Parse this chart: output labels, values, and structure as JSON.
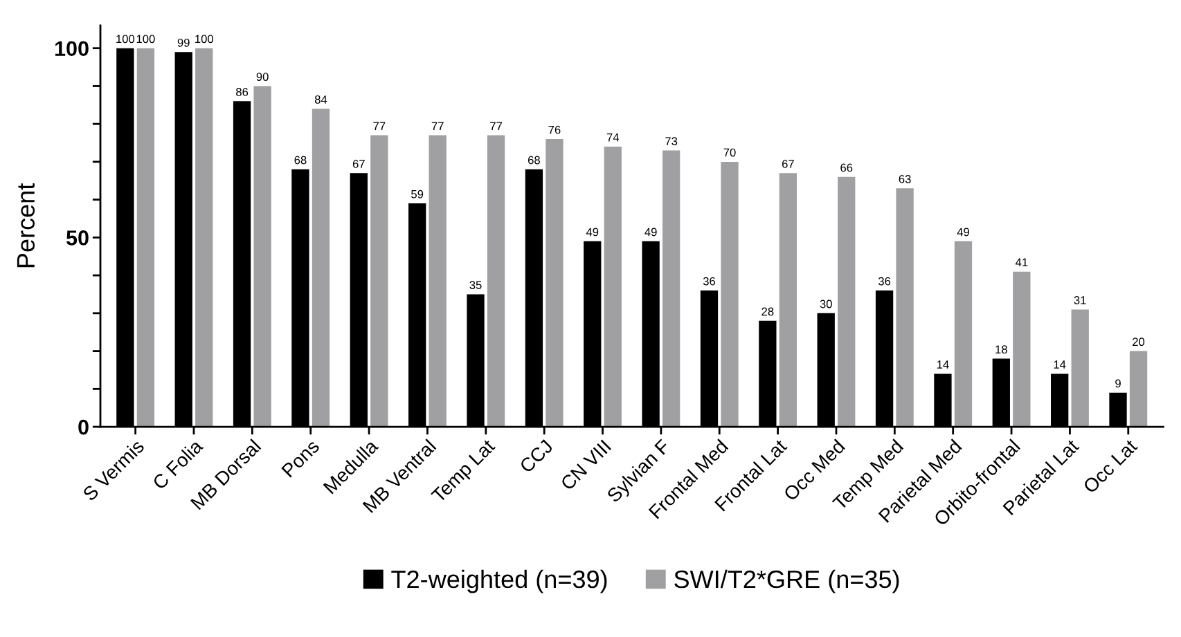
{
  "chart_data": {
    "type": "bar",
    "ylabel": "Percent",
    "categories": [
      "S Vermis",
      "C Folia",
      "MB Dorsal",
      "Pons",
      "Medulla",
      "MB Ventral",
      "Temp Lat",
      "CCJ",
      "CN VIII",
      "Sylvian F",
      "Frontal Med",
      "Frontal Lat",
      "Occ Med",
      "Temp Med",
      "Parietal Med",
      "Orbito-frontal",
      "Parietal Lat",
      "Occ Lat"
    ],
    "series": [
      {
        "name": "T2-weighted (n=39)",
        "color": "#000000",
        "values": [
          100,
          99,
          86,
          68,
          67,
          59,
          35,
          68,
          49,
          49,
          36,
          28,
          30,
          36,
          14,
          18,
          14,
          9
        ]
      },
      {
        "name": "SWI/T2*GRE (n=35)",
        "color": "#a0a0a2",
        "values": [
          100,
          100,
          90,
          84,
          77,
          77,
          77,
          76,
          74,
          73,
          70,
          67,
          66,
          63,
          49,
          41,
          31,
          20
        ]
      }
    ],
    "ylim": [
      0,
      106
    ],
    "yticks": [
      0,
      {
        "value": 10,
        "label": null
      },
      {
        "value": 20,
        "label": null
      },
      {
        "value": 30,
        "label": null
      },
      {
        "value": 40,
        "label": null
      },
      50,
      {
        "value": 60,
        "label": null
      },
      {
        "value": 70,
        "label": null
      },
      {
        "value": 80,
        "label": null
      },
      {
        "value": 90,
        "label": null
      },
      100
    ],
    "data_labels": true,
    "legend": "bottom",
    "grid": false
  }
}
